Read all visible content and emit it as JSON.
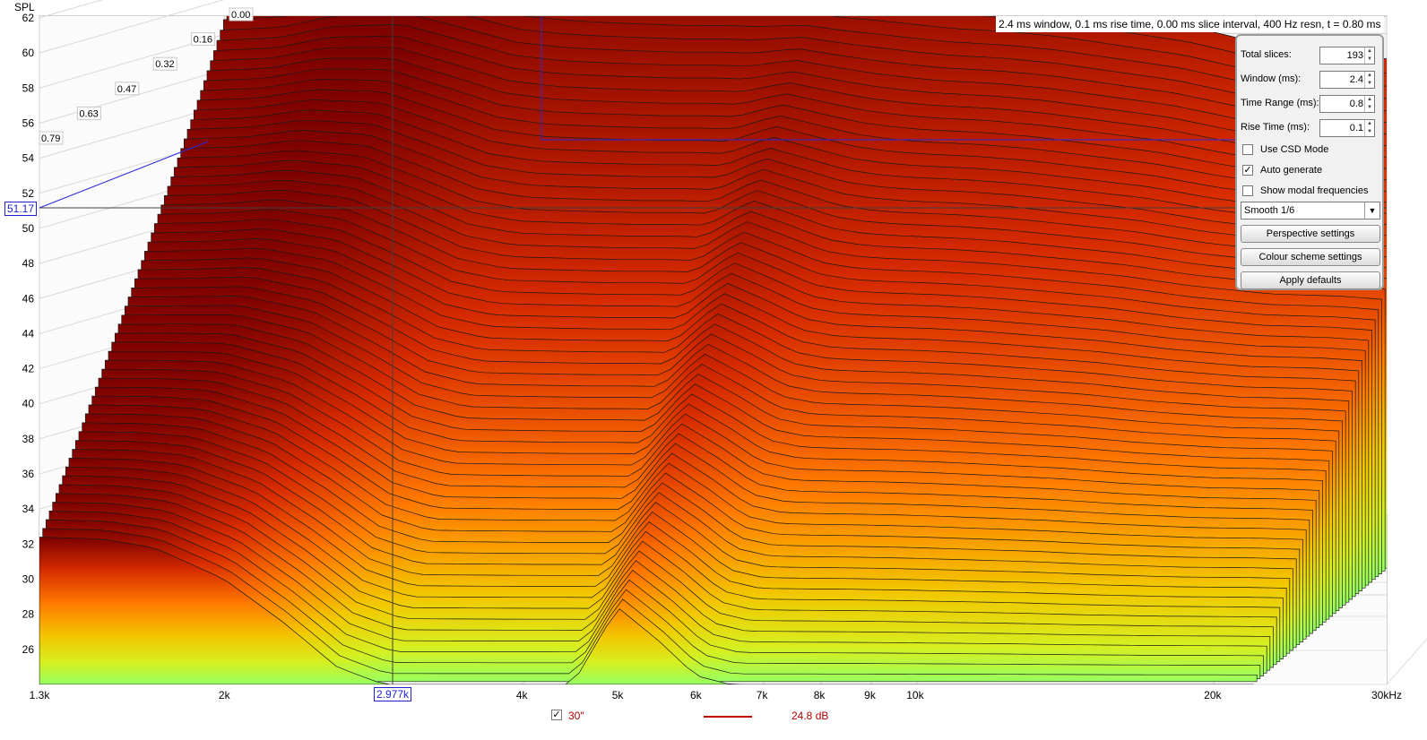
{
  "chart_data": {
    "type": "waterfall",
    "ylabel": "SPL",
    "y_ticks": [
      62,
      60,
      58,
      56,
      54,
      52,
      50,
      48,
      46,
      44,
      42,
      40,
      38,
      36,
      34,
      32,
      30,
      28,
      26
    ],
    "ylim": [
      24,
      62
    ],
    "x_ticks": [
      "1.3k",
      "2k",
      "4k",
      "5k",
      "6k",
      "7k",
      "8k",
      "9k",
      "10k",
      "20k",
      "30kHz"
    ],
    "x_tick_values": [
      1300,
      2000,
      4000,
      5000,
      6000,
      7000,
      8000,
      9000,
      10000,
      20000,
      30000
    ],
    "xlim": [
      1300,
      30000
    ],
    "x_scale": "log",
    "time_ticks": [
      "0.00",
      "0.16",
      "0.32",
      "0.47",
      "0.63",
      "0.79"
    ],
    "time_range_ms": [
      0,
      0.8
    ],
    "cursor_frequency_label": "2.977k",
    "cursor_spl_label": "51.17",
    "right_time_label": "0.79",
    "front_slice_x": [
      1300,
      1500,
      1700,
      2000,
      2300,
      2600,
      2900,
      3100,
      3400,
      3800,
      4200,
      4600,
      5000,
      5500,
      6000,
      6500,
      7000,
      8000,
      9000,
      10000,
      12000,
      14000,
      17000,
      20000,
      22000
    ],
    "front_slice_y": [
      54.8,
      55.0,
      55.8,
      56.2,
      55.5,
      54.9,
      54.7,
      54.6,
      54.5,
      54.4,
      54.4,
      54.3,
      54.1,
      53.9,
      53.8,
      53.6,
      53.4,
      53.2,
      52.9,
      52.5,
      51.8,
      50.9,
      50.1,
      49.9,
      49.6
    ],
    "rear_slice_x": [
      1300,
      1500,
      1700,
      2000,
      2300,
      2600,
      2900,
      3000,
      3500,
      4200,
      4500,
      5000,
      5500,
      6000,
      6500,
      7000,
      8000
    ],
    "rear_slice_y": [
      32.4,
      32.3,
      31.8,
      30.0,
      27.5,
      25.0,
      24.0,
      24.0,
      24.0,
      24.0,
      24.0,
      28.4,
      26.5,
      24.5,
      24.0,
      24.0,
      24.0
    ],
    "series": [
      {
        "name": "30\"",
        "level": "24.8 dB",
        "color": "#c00000"
      }
    ],
    "colour_scale": [
      "#8b0000",
      "#e03a00",
      "#ff8a00",
      "#f0d200",
      "#a8ff5a"
    ]
  },
  "info_bar": {
    "text": "2.4 ms window, 0.1 ms rise time, 0.00 ms slice interval, 400 Hz resn, t = 0.80 ms"
  },
  "panel": {
    "total_slices_label": "Total slices:",
    "total_slices_value": "193",
    "window_label": "Window (ms):",
    "window_value": "2.4",
    "time_range_label": "Time Range (ms):",
    "time_range_value": "0.8",
    "rise_time_label": "Rise Time (ms):",
    "rise_time_value": "0.1",
    "use_csd_label": "Use CSD Mode",
    "use_csd_checked": false,
    "auto_generate_label": "Auto generate",
    "auto_generate_checked": true,
    "show_modal_label": "Show modal frequencies",
    "show_modal_checked": false,
    "smoothing_value": "Smooth 1/6",
    "perspective_button": "Perspective settings",
    "colour_button": "Colour scheme settings",
    "defaults_button": "Apply defaults"
  },
  "legend": {
    "checked": true,
    "check_glyph": "✓",
    "spinner_up": "▲",
    "spinner_down": "▼",
    "dropdown_glyph": "▼"
  }
}
